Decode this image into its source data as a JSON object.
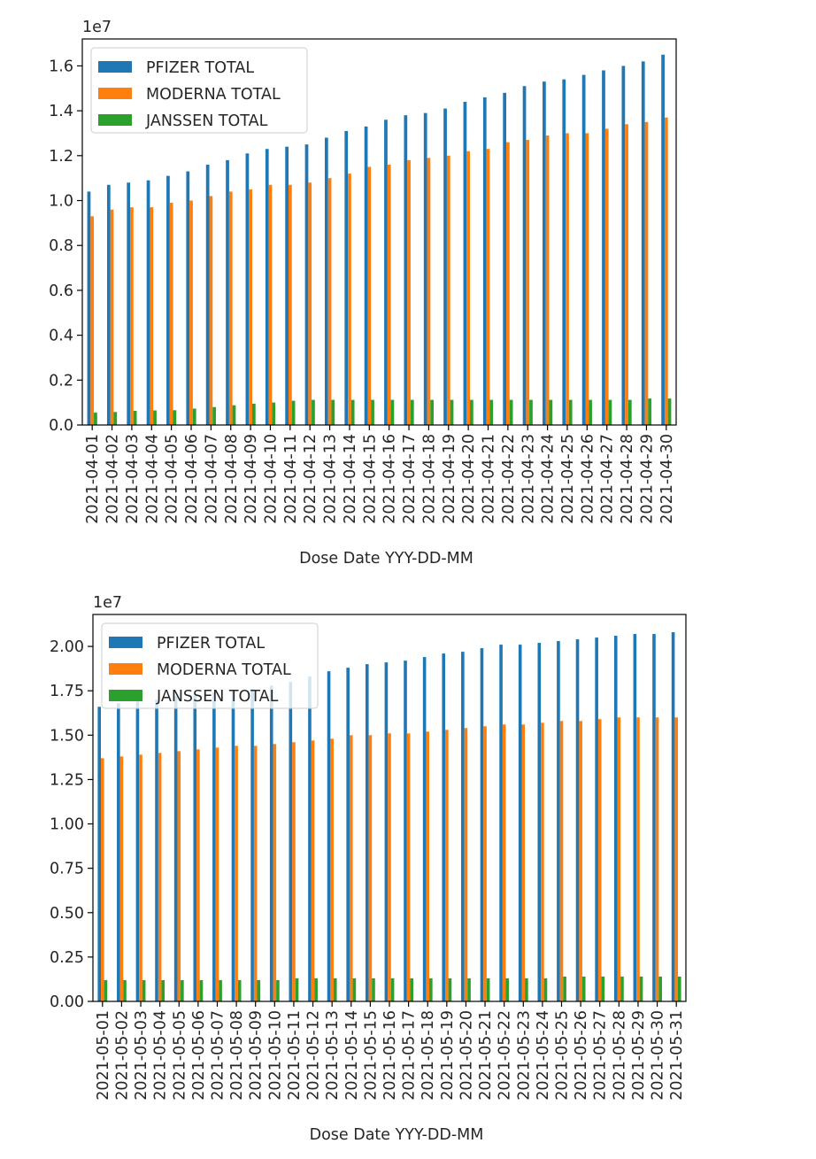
{
  "chart_data": [
    {
      "type": "bar",
      "offset_label": "1e7",
      "xlabel": "Dose Date YYY-DD-MM",
      "ylabel": "",
      "ylim": [
        0,
        1.72
      ],
      "yticks": [
        0.0,
        0.2,
        0.4,
        0.6,
        0.8,
        1.0,
        1.2,
        1.4,
        1.6
      ],
      "ytick_decimals": 1,
      "grid": false,
      "legend": "top-left",
      "categories": [
        "2021-04-01",
        "2021-04-02",
        "2021-04-03",
        "2021-04-04",
        "2021-04-05",
        "2021-04-06",
        "2021-04-07",
        "2021-04-08",
        "2021-04-09",
        "2021-04-10",
        "2021-04-11",
        "2021-04-12",
        "2021-04-13",
        "2021-04-14",
        "2021-04-15",
        "2021-04-16",
        "2021-04-17",
        "2021-04-18",
        "2021-04-19",
        "2021-04-20",
        "2021-04-21",
        "2021-04-22",
        "2021-04-23",
        "2021-04-24",
        "2021-04-25",
        "2021-04-26",
        "2021-04-27",
        "2021-04-28",
        "2021-04-29",
        "2021-04-30"
      ],
      "series": [
        {
          "name": "PFIZER TOTAL",
          "color": "#1f77b4",
          "values": [
            1.04,
            1.07,
            1.08,
            1.09,
            1.11,
            1.13,
            1.16,
            1.18,
            1.21,
            1.23,
            1.24,
            1.25,
            1.28,
            1.31,
            1.33,
            1.36,
            1.38,
            1.39,
            1.41,
            1.44,
            1.46,
            1.48,
            1.51,
            1.53,
            1.54,
            1.56,
            1.58,
            1.6,
            1.62,
            1.65
          ]
        },
        {
          "name": "MODERNA TOTAL",
          "color": "#ff7f0e",
          "values": [
            0.93,
            0.96,
            0.97,
            0.97,
            0.99,
            1.0,
            1.02,
            1.04,
            1.05,
            1.07,
            1.07,
            1.08,
            1.1,
            1.12,
            1.15,
            1.16,
            1.18,
            1.19,
            1.2,
            1.22,
            1.23,
            1.26,
            1.27,
            1.29,
            1.3,
            1.3,
            1.32,
            1.34,
            1.35,
            1.37
          ]
        },
        {
          "name": "JANSSEN TOTAL",
          "color": "#2ca02c",
          "values": [
            0.055,
            0.058,
            0.063,
            0.065,
            0.066,
            0.073,
            0.08,
            0.088,
            0.095,
            0.1,
            0.108,
            0.112,
            0.112,
            0.112,
            0.112,
            0.112,
            0.112,
            0.112,
            0.112,
            0.112,
            0.112,
            0.112,
            0.112,
            0.112,
            0.112,
            0.112,
            0.112,
            0.112,
            0.118,
            0.118
          ]
        }
      ]
    },
    {
      "type": "bar",
      "offset_label": "1e7",
      "xlabel": "Dose Date YYY-DD-MM",
      "ylabel": "",
      "ylim": [
        0,
        2.18
      ],
      "yticks": [
        0.0,
        0.25,
        0.5,
        0.75,
        1.0,
        1.25,
        1.5,
        1.75,
        2.0
      ],
      "ytick_decimals": 2,
      "grid": false,
      "legend": "top-left",
      "categories": [
        "2021-05-01",
        "2021-05-02",
        "2021-05-03",
        "2021-05-04",
        "2021-05-05",
        "2021-05-06",
        "2021-05-07",
        "2021-05-08",
        "2021-05-09",
        "2021-05-10",
        "2021-05-11",
        "2021-05-12",
        "2021-05-13",
        "2021-05-14",
        "2021-05-15",
        "2021-05-16",
        "2021-05-17",
        "2021-05-18",
        "2021-05-19",
        "2021-05-20",
        "2021-05-21",
        "2021-05-22",
        "2021-05-23",
        "2021-05-24",
        "2021-05-25",
        "2021-05-26",
        "2021-05-27",
        "2021-05-28",
        "2021-05-29",
        "2021-05-30",
        "2021-05-31"
      ],
      "series": [
        {
          "name": "PFIZER TOTAL",
          "color": "#1f77b4",
          "values": [
            1.66,
            1.68,
            1.69,
            1.7,
            1.72,
            1.73,
            1.74,
            1.75,
            1.76,
            1.78,
            1.8,
            1.83,
            1.86,
            1.88,
            1.9,
            1.91,
            1.92,
            1.94,
            1.96,
            1.97,
            1.99,
            2.01,
            2.01,
            2.02,
            2.03,
            2.04,
            2.05,
            2.06,
            2.07,
            2.07,
            2.08
          ]
        },
        {
          "name": "MODERNA TOTAL",
          "color": "#ff7f0e",
          "values": [
            1.37,
            1.38,
            1.39,
            1.4,
            1.41,
            1.42,
            1.43,
            1.44,
            1.44,
            1.45,
            1.46,
            1.47,
            1.48,
            1.5,
            1.5,
            1.51,
            1.51,
            1.52,
            1.53,
            1.54,
            1.55,
            1.56,
            1.56,
            1.57,
            1.58,
            1.58,
            1.59,
            1.6,
            1.6,
            1.6,
            1.6
          ]
        },
        {
          "name": "JANSSEN TOTAL",
          "color": "#2ca02c",
          "values": [
            0.12,
            0.12,
            0.12,
            0.12,
            0.12,
            0.12,
            0.12,
            0.12,
            0.12,
            0.12,
            0.13,
            0.13,
            0.13,
            0.13,
            0.13,
            0.13,
            0.13,
            0.13,
            0.13,
            0.13,
            0.13,
            0.13,
            0.13,
            0.13,
            0.14,
            0.14,
            0.14,
            0.14,
            0.14,
            0.14,
            0.14
          ]
        }
      ]
    }
  ]
}
